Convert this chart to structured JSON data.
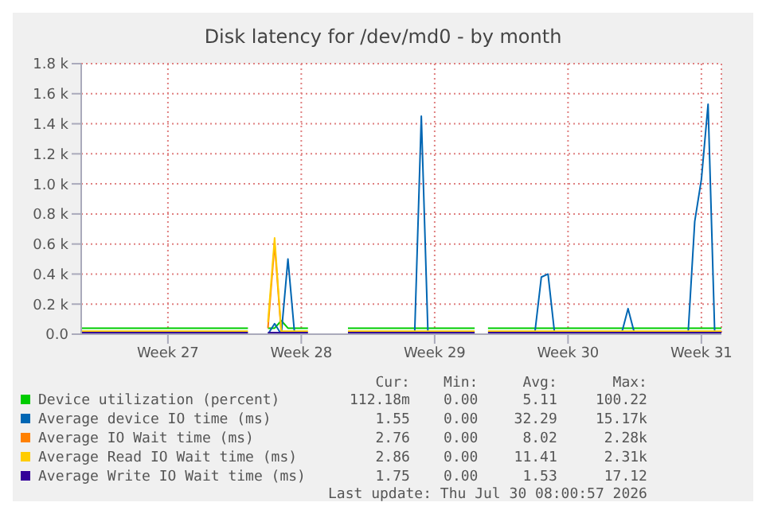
{
  "chart_data": {
    "type": "line",
    "title": "Disk latency for /dev/md0 - by month",
    "categories": [
      null,
      null,
      null,
      null,
      null,
      null,
      null,
      null,
      null,
      null,
      null,
      null,
      null,
      "Week 27",
      null,
      null,
      null,
      null,
      null,
      null,
      null,
      null,
      null,
      null,
      null,
      null,
      null,
      null,
      null,
      null,
      null,
      null,
      null,
      "Week 28",
      null,
      null,
      null,
      null,
      null,
      null,
      null,
      null,
      null,
      null,
      null,
      null,
      null,
      null,
      null,
      null,
      null,
      null,
      null,
      "Week 29",
      null,
      null,
      null,
      null,
      null,
      null,
      null,
      null,
      null,
      null,
      null,
      null,
      null,
      null,
      null,
      null,
      null,
      null,
      null,
      "Week 30",
      null,
      null,
      null,
      null,
      null,
      null,
      null,
      null,
      null,
      null,
      null,
      null,
      null,
      null,
      null,
      null,
      null,
      null,
      null,
      "Week 31",
      null,
      null,
      null
    ],
    "series": [
      {
        "name": "Device utilization (percent)",
        "color": "#00cc00",
        "values": [
          40,
          40,
          40,
          40,
          40,
          40,
          40,
          40,
          40,
          40,
          40,
          40,
          40,
          40,
          40,
          40,
          40,
          40,
          40,
          40,
          40,
          40,
          40,
          40,
          40,
          40,
          null,
          null,
          40,
          40,
          90,
          40,
          40,
          40,
          40,
          null,
          null,
          null,
          null,
          null,
          40,
          40,
          40,
          40,
          40,
          40,
          40,
          40,
          40,
          40,
          40,
          40,
          40,
          40,
          40,
          40,
          40,
          40,
          40,
          40,
          null,
          40,
          40,
          40,
          40,
          40,
          40,
          40,
          40,
          40,
          40,
          40,
          40,
          40,
          40,
          40,
          40,
          40,
          40,
          40,
          40,
          40,
          40,
          40,
          40,
          40,
          40,
          40,
          40,
          40,
          40,
          40,
          40,
          40,
          40,
          40,
          40
        ]
      },
      {
        "name": "Average device IO time (ms)",
        "color": "#0066b3",
        "values": [
          null,
          null,
          null,
          null,
          null,
          null,
          null,
          null,
          null,
          null,
          null,
          null,
          null,
          null,
          null,
          null,
          null,
          null,
          null,
          null,
          null,
          null,
          null,
          null,
          null,
          null,
          null,
          null,
          0,
          70,
          0,
          500,
          0,
          null,
          null,
          null,
          null,
          null,
          null,
          null,
          null,
          null,
          null,
          null,
          null,
          null,
          null,
          null,
          null,
          null,
          0,
          1450,
          0,
          null,
          null,
          null,
          null,
          null,
          null,
          null,
          null,
          null,
          null,
          null,
          null,
          null,
          null,
          null,
          0,
          380,
          400,
          0,
          null,
          null,
          null,
          null,
          null,
          null,
          null,
          null,
          null,
          0,
          170,
          0,
          null,
          null,
          null,
          null,
          null,
          null,
          null,
          0,
          750,
          1030,
          1530,
          0,
          null
        ]
      },
      {
        "name": "Average IO Wait time (ms)",
        "color": "#ff8000",
        "values": [
          null,
          null,
          null,
          null,
          null,
          null,
          null,
          null,
          null,
          null,
          null,
          null,
          null,
          null,
          null,
          null,
          null,
          null,
          null,
          null,
          null,
          null,
          null,
          null,
          null,
          null,
          null,
          null,
          40,
          600,
          10,
          null,
          null,
          null,
          null,
          null,
          null,
          null,
          null,
          null,
          null,
          null,
          null,
          null,
          null,
          null,
          null,
          null,
          null,
          null,
          null,
          null,
          null,
          null,
          null,
          null,
          null,
          null,
          null,
          null,
          null,
          null,
          null,
          null,
          null,
          null,
          null,
          null,
          null,
          null,
          null,
          null,
          null,
          null,
          null,
          null,
          null,
          null,
          null,
          null,
          null,
          null,
          null,
          null,
          null,
          null,
          null,
          null,
          null,
          null,
          null,
          null,
          null,
          null,
          null,
          null,
          null
        ]
      },
      {
        "name": "Average Read IO Wait time (ms)",
        "color": "#ffcc00",
        "values": [
          20,
          20,
          20,
          20,
          20,
          20,
          20,
          20,
          20,
          20,
          20,
          20,
          20,
          20,
          20,
          20,
          20,
          20,
          20,
          20,
          20,
          20,
          20,
          20,
          20,
          20,
          null,
          null,
          80,
          640,
          20,
          20,
          20,
          20,
          20,
          null,
          null,
          null,
          null,
          null,
          20,
          20,
          20,
          20,
          20,
          20,
          20,
          20,
          20,
          20,
          20,
          20,
          20,
          20,
          20,
          20,
          20,
          20,
          20,
          20,
          null,
          20,
          20,
          20,
          20,
          20,
          20,
          20,
          20,
          20,
          20,
          20,
          20,
          20,
          20,
          20,
          20,
          20,
          20,
          20,
          20,
          20,
          20,
          20,
          20,
          20,
          20,
          20,
          20,
          20,
          20,
          20,
          20,
          20,
          20,
          20,
          20
        ]
      },
      {
        "name": "Average Write IO Wait time (ms)",
        "color": "#330099",
        "values": [
          10,
          10,
          10,
          10,
          10,
          10,
          10,
          10,
          10,
          10,
          10,
          10,
          10,
          10,
          10,
          10,
          10,
          10,
          10,
          10,
          10,
          10,
          10,
          10,
          10,
          10,
          null,
          null,
          10,
          10,
          10,
          10,
          10,
          10,
          10,
          null,
          null,
          null,
          null,
          null,
          10,
          10,
          10,
          10,
          10,
          10,
          10,
          10,
          10,
          10,
          10,
          10,
          10,
          10,
          10,
          10,
          10,
          10,
          10,
          10,
          null,
          10,
          10,
          10,
          10,
          10,
          10,
          10,
          10,
          10,
          10,
          10,
          10,
          10,
          10,
          10,
          10,
          10,
          10,
          10,
          10,
          10,
          10,
          10,
          10,
          10,
          10,
          10,
          10,
          10,
          10,
          10,
          10,
          10,
          10,
          10,
          10
        ]
      }
    ],
    "ylim": [
      0,
      1800
    ],
    "yticks": [
      {
        "value": 0,
        "label": "0.0"
      },
      {
        "value": 200,
        "label": "0.2 k"
      },
      {
        "value": 400,
        "label": "0.4 k"
      },
      {
        "value": 600,
        "label": "0.6 k"
      },
      {
        "value": 800,
        "label": "0.8 k"
      },
      {
        "value": 1000,
        "label": "1.0 k"
      },
      {
        "value": 1200,
        "label": "1.2 k"
      },
      {
        "value": 1400,
        "label": "1.4 k"
      },
      {
        "value": 1600,
        "label": "1.6 k"
      },
      {
        "value": 1800,
        "label": "1.8 k"
      }
    ],
    "grid": true,
    "legend": "bottom",
    "line_style": "solid",
    "annotations": [
      "Cur:",
      "Min:",
      "Avg:",
      "Max:",
      "112.18m",
      "0.00",
      "5.11",
      "100.22",
      "1.55",
      "0.00",
      "32.29",
      "15.17k",
      "2.76",
      "0.00",
      "8.02",
      "2.28k",
      "2.86",
      "0.00",
      "11.41",
      "2.31k",
      "1.75",
      "0.00",
      "1.53",
      "17.12",
      "Last update: Thu Jul 30 08:00:57 2026"
    ]
  }
}
